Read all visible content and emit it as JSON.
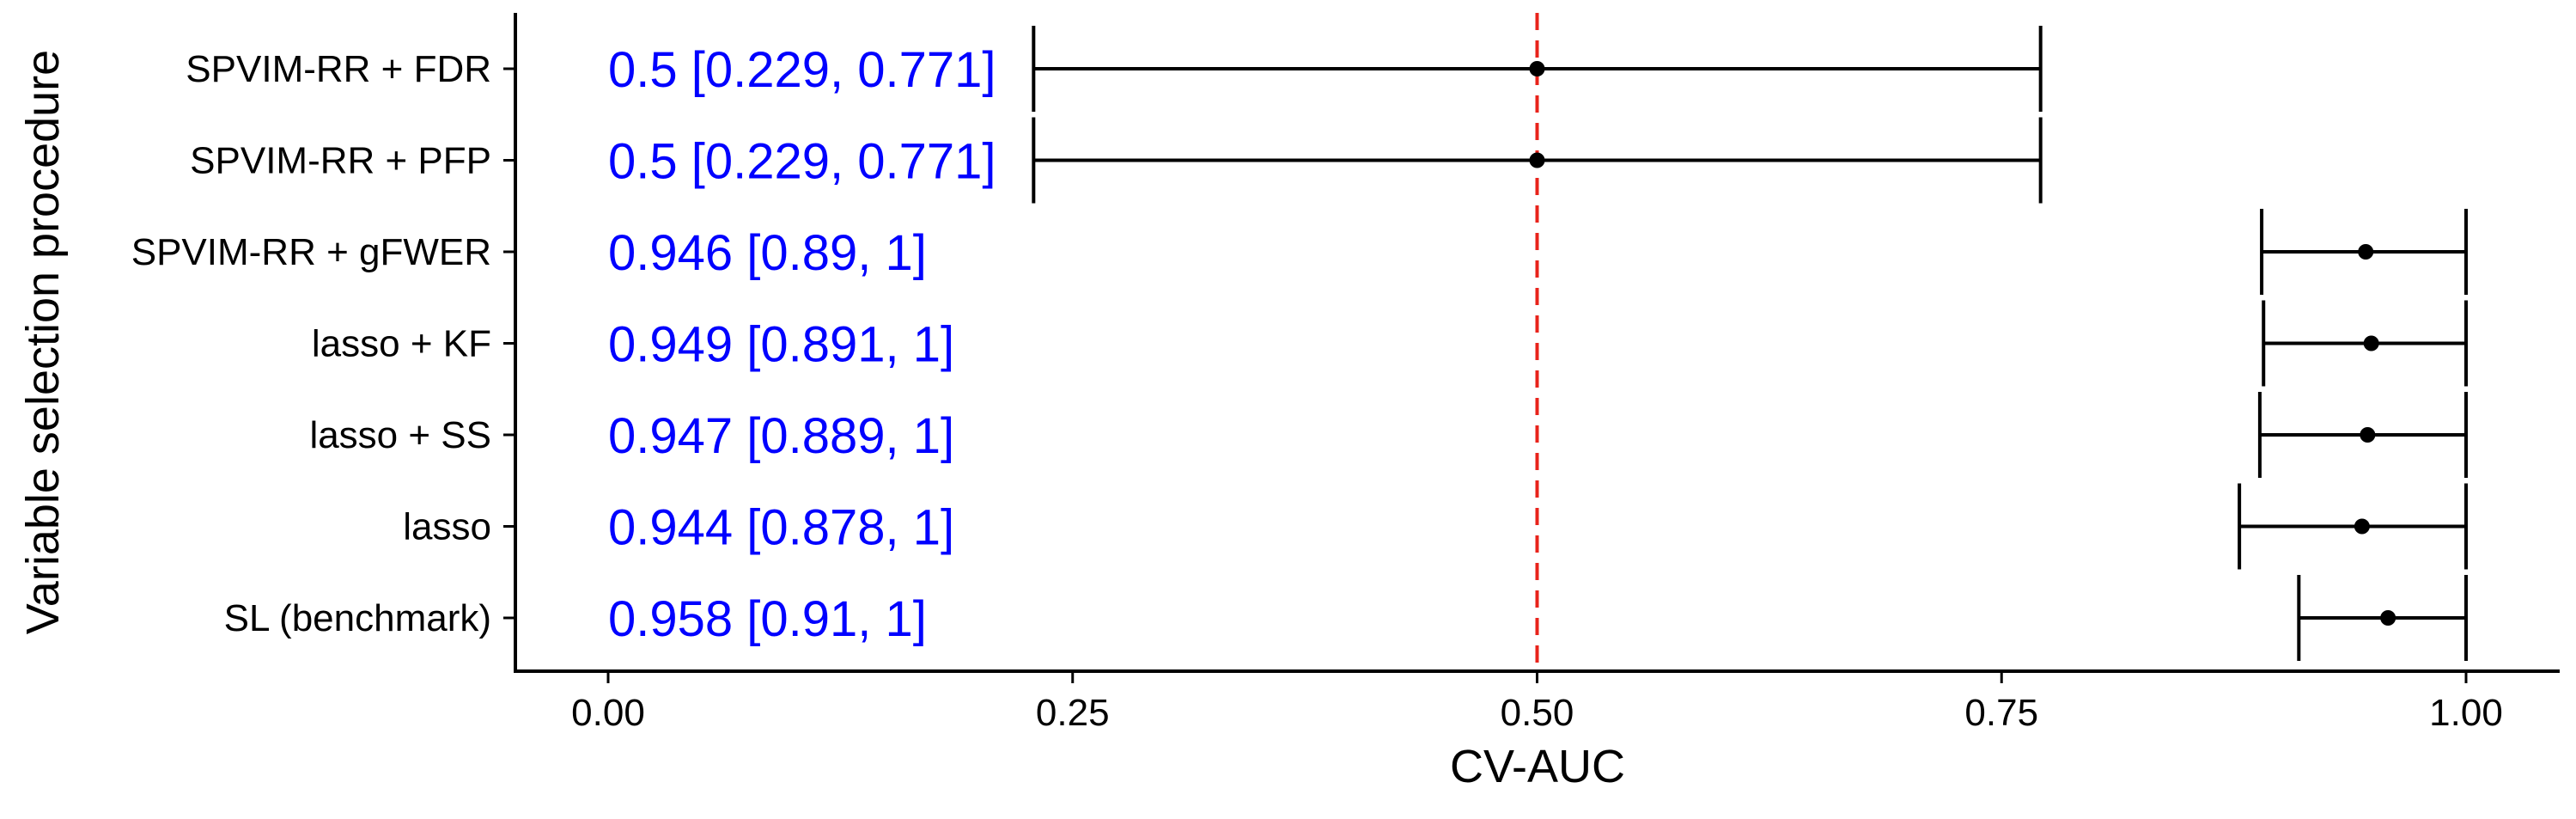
{
  "chart_data": {
    "type": "forest",
    "title": "",
    "xlabel": "CV-AUC",
    "ylabel": "Variable selection procedure",
    "xlim": [
      -0.05,
      1.05
    ],
    "xticks": [
      0.0,
      0.25,
      0.5,
      0.75,
      1.0
    ],
    "xtick_labels": [
      "0.00",
      "0.25",
      "0.50",
      "0.75",
      "1.00"
    ],
    "reference_line": {
      "x": 0.5,
      "style": "dashed",
      "color": "#e8231b"
    },
    "grid": false,
    "legend": "none",
    "colors": {
      "points": "#000000",
      "annotations": "#0000ff"
    },
    "rows": [
      {
        "label": "SPVIM-RR + FDR",
        "estimate": 0.5,
        "lower": 0.229,
        "upper": 0.771,
        "annotation": "0.5 [0.229, 0.771]"
      },
      {
        "label": "SPVIM-RR + PFP",
        "estimate": 0.5,
        "lower": 0.229,
        "upper": 0.771,
        "annotation": "0.5 [0.229, 0.771]"
      },
      {
        "label": "SPVIM-RR + gFWER",
        "estimate": 0.946,
        "lower": 0.89,
        "upper": 1,
        "annotation": "0.946 [0.89, 1]"
      },
      {
        "label": "lasso + KF",
        "estimate": 0.949,
        "lower": 0.891,
        "upper": 1,
        "annotation": "0.949 [0.891, 1]"
      },
      {
        "label": "lasso + SS",
        "estimate": 0.947,
        "lower": 0.889,
        "upper": 1,
        "annotation": "0.947 [0.889, 1]"
      },
      {
        "label": "lasso",
        "estimate": 0.944,
        "lower": 0.878,
        "upper": 1,
        "annotation": "0.944 [0.878, 1]"
      },
      {
        "label": "SL (benchmark)",
        "estimate": 0.958,
        "lower": 0.91,
        "upper": 1,
        "annotation": "0.958 [0.91, 1]"
      }
    ]
  }
}
